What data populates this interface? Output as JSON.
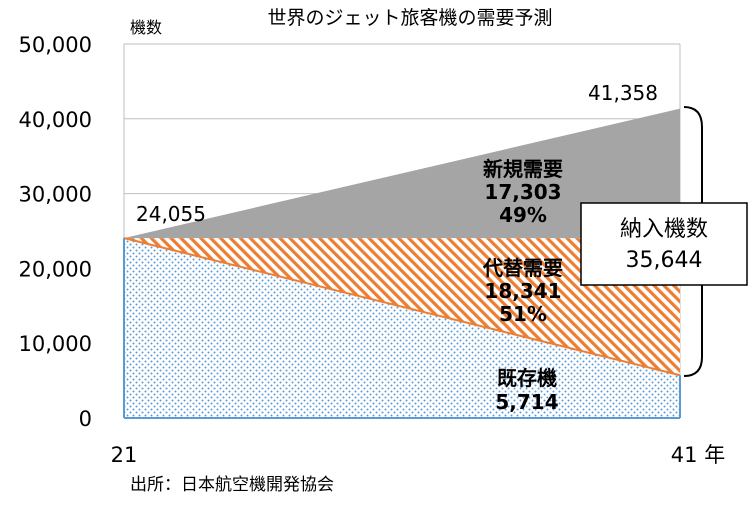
{
  "chart_data": {
    "type": "area",
    "title": "世界のジェット旅客機の需要予測",
    "ylabel": "機数",
    "x_tick_labels": [
      "21",
      "41 年"
    ],
    "x": [
      "21",
      "41"
    ],
    "ylim": [
      0,
      50000
    ],
    "y_ticks": [
      0,
      10000,
      20000,
      30000,
      40000,
      50000
    ],
    "y_tick_labels": [
      "0",
      "10,000",
      "20,000",
      "30,000",
      "40,000",
      "50,000"
    ],
    "grid": true,
    "total_start": 24055,
    "total_start_label": "24,055",
    "total_end": 41358,
    "total_end_label": "41,358",
    "series": [
      {
        "name": "既存機",
        "values": [
          24055,
          5714
        ],
        "value_label": "5,714",
        "share_label": "",
        "color": "#5b9bd5"
      },
      {
        "name": "代替需要",
        "values": [
          0,
          18341
        ],
        "value_label": "18,341",
        "share_label": "51%",
        "color": "#ed7d31"
      },
      {
        "name": "新規需要",
        "values": [
          0,
          17303
        ],
        "value_label": "17,303",
        "share_label": "49%",
        "color": "#a5a5a5"
      }
    ],
    "bracket": {
      "label": "納入機数",
      "value": 35644,
      "value_label": "35,644"
    },
    "source": "出所：日本航空機開発協会"
  }
}
